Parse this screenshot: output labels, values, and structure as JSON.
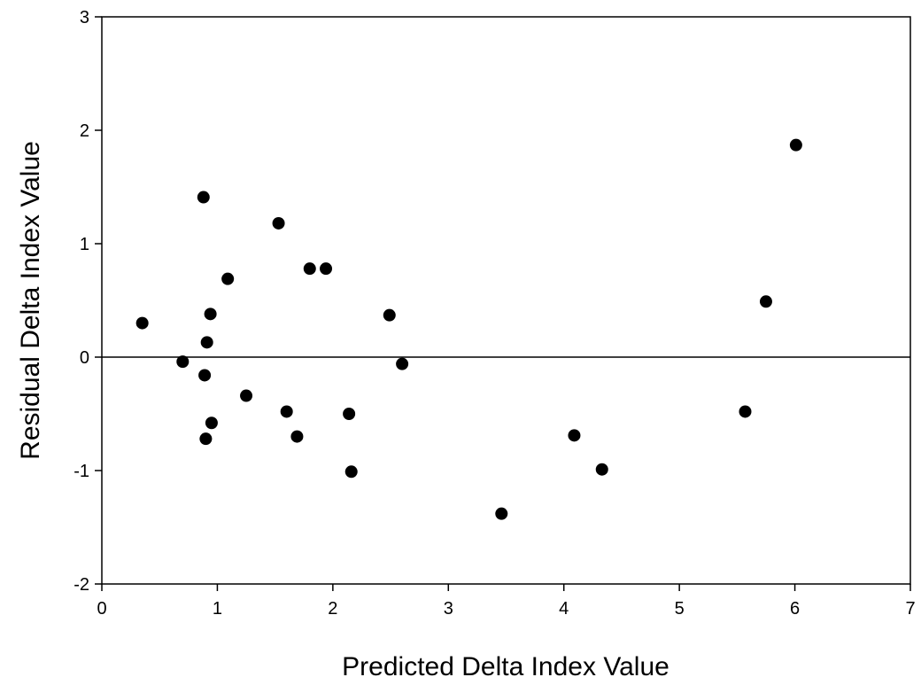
{
  "chart_data": {
    "type": "scatter",
    "title": "",
    "xlabel": "Predicted Delta Index Value",
    "ylabel": "Residual Delta Index Value",
    "xlim": [
      0,
      7
    ],
    "ylim": [
      -2,
      3
    ],
    "xticks": [
      0,
      1,
      2,
      3,
      4,
      5,
      6,
      7
    ],
    "yticks": [
      -2,
      -1,
      0,
      1,
      2,
      3
    ],
    "reference_line_y": 0,
    "grid": false,
    "legend": "none",
    "marker_color": "#000000",
    "series": [
      {
        "points": [
          {
            "x": 0.35,
            "y": 0.3
          },
          {
            "x": 0.7,
            "y": -0.04
          },
          {
            "x": 0.88,
            "y": 1.41
          },
          {
            "x": 0.89,
            "y": -0.16
          },
          {
            "x": 0.9,
            "y": -0.72
          },
          {
            "x": 0.91,
            "y": 0.13
          },
          {
            "x": 0.94,
            "y": 0.38
          },
          {
            "x": 0.95,
            "y": -0.58
          },
          {
            "x": 1.09,
            "y": 0.69
          },
          {
            "x": 1.25,
            "y": -0.34
          },
          {
            "x": 1.53,
            "y": 1.18
          },
          {
            "x": 1.6,
            "y": -0.48
          },
          {
            "x": 1.69,
            "y": -0.7
          },
          {
            "x": 1.8,
            "y": 0.78
          },
          {
            "x": 1.94,
            "y": 0.78
          },
          {
            "x": 2.14,
            "y": -0.5
          },
          {
            "x": 2.16,
            "y": -1.01
          },
          {
            "x": 2.49,
            "y": 0.37
          },
          {
            "x": 2.6,
            "y": -0.06
          },
          {
            "x": 3.46,
            "y": -1.38
          },
          {
            "x": 4.09,
            "y": -0.69
          },
          {
            "x": 4.33,
            "y": -0.99
          },
          {
            "x": 5.57,
            "y": -0.48
          },
          {
            "x": 5.75,
            "y": 0.49
          },
          {
            "x": 6.01,
            "y": 1.87
          }
        ]
      }
    ]
  }
}
